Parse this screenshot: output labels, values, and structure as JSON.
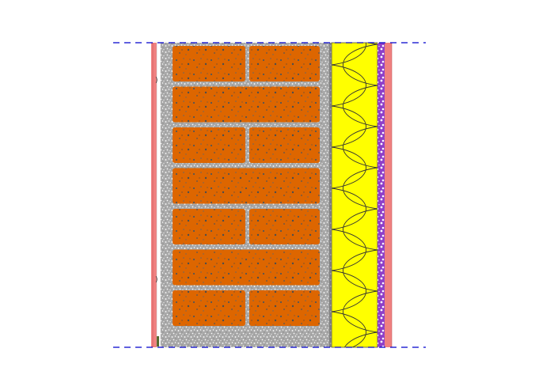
{
  "diagram": {
    "layers": [
      {
        "id": "exterior-render",
        "material": "render",
        "color": "#f08080"
      },
      {
        "id": "mortar-bed",
        "material": "mortar",
        "color": "#a9a9a9"
      },
      {
        "id": "brick-masonry",
        "material": "brick",
        "color": "#dd6600",
        "speckle_color": "#555555"
      },
      {
        "id": "mortar-joint-layer",
        "material": "mortar",
        "color": "#a9a9a9"
      },
      {
        "id": "insulation",
        "material": "mineral wool",
        "color": "#ffff00"
      },
      {
        "id": "vapour-membrane",
        "material": "membrane",
        "color": "#7b2cbf"
      },
      {
        "id": "interior-finish",
        "material": "plaster",
        "color": "#f08080"
      }
    ],
    "brick_courses": [
      {
        "course": 1,
        "pattern": "two-bricks"
      },
      {
        "course": 2,
        "pattern": "one-brick"
      },
      {
        "course": 3,
        "pattern": "two-bricks"
      },
      {
        "course": 4,
        "pattern": "one-brick"
      },
      {
        "course": 5,
        "pattern": "two-bricks"
      },
      {
        "course": 6,
        "pattern": "one-brick"
      },
      {
        "course": 7,
        "pattern": "two-bricks"
      }
    ],
    "boundary_line_color": "#0000cc",
    "insulation_pattern": "batt-wave"
  }
}
